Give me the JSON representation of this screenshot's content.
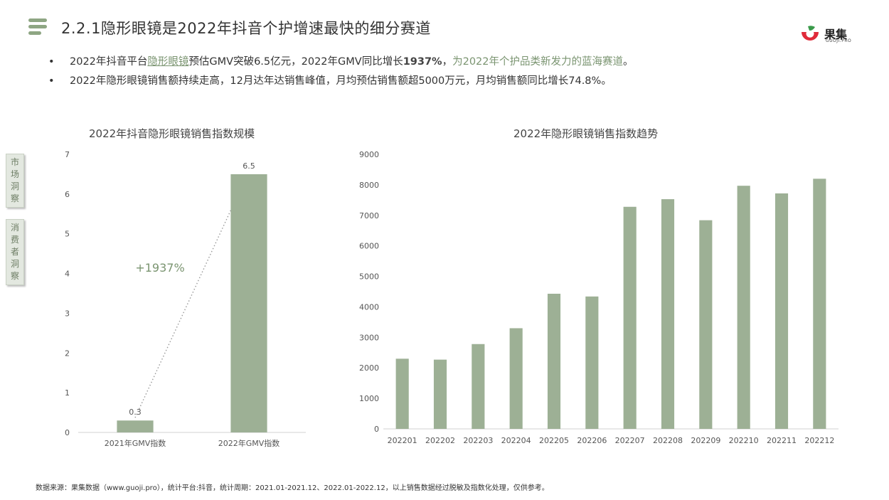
{
  "header": {
    "title": "2.2.1隐形眼镜是2022年抖音个护增速最快的细分赛道",
    "logo_name": "果集",
    "logo_sub": "GUOJI.PRO"
  },
  "bullets": [
    {
      "p1": "2022年抖音平台",
      "p2": "隐形眼镜",
      "p3": "预估GMV突破6.5亿元，2022年GMV同比增长",
      "p4": "1937%",
      "p5": "，",
      "p6": "为2022年个护品类新发力的蓝海赛道"
    },
    {
      "p1": "2022年隐形眼镜销售额持续走高，12月达年达销售峰值，月均预估销售额超5000万元，月均销售额同比增长74.8%。"
    }
  ],
  "side_tabs": [
    "市场洞察",
    "消费者洞察"
  ],
  "colors": {
    "bar": "#9db095",
    "accent": "#7a9470",
    "logo_red": "#e02b3a",
    "logo_green": "#3a9a4a"
  },
  "chart_data": [
    {
      "type": "bar",
      "title": "2022年抖音隐形眼镜销售指数规模",
      "categories": [
        "2021年GMV指数",
        "2022年GMV指数"
      ],
      "values": [
        0.3,
        6.5
      ],
      "data_labels": [
        "0.3",
        "6.5"
      ],
      "ylim": [
        0,
        7
      ],
      "yticks": [
        "0",
        "1",
        "2",
        "3",
        "4",
        "5",
        "6",
        "7"
      ],
      "annotation": "+1937%",
      "grid": false
    },
    {
      "type": "bar",
      "title": "2022年隐形眼镜销售指数趋势",
      "categories": [
        "202201",
        "202202",
        "202203",
        "202204",
        "202205",
        "202206",
        "202207",
        "202208",
        "202209",
        "202210",
        "202211",
        "202212"
      ],
      "values": [
        2300,
        2270,
        2780,
        3300,
        4430,
        4340,
        7280,
        7530,
        6840,
        7970,
        7720,
        8200
      ],
      "ylim": [
        0,
        9000
      ],
      "yticks": [
        "0",
        "1000",
        "2000",
        "3000",
        "4000",
        "5000",
        "6000",
        "7000",
        "8000",
        "9000"
      ],
      "grid": false
    }
  ],
  "footer": "数据来源：果集数据（www.guoji.pro），统计平台:抖音，统计周期：2021.01-2021.12、2022.01-2022.12，以上销售数据经过脱敏及指数化处理，仅供参考。"
}
